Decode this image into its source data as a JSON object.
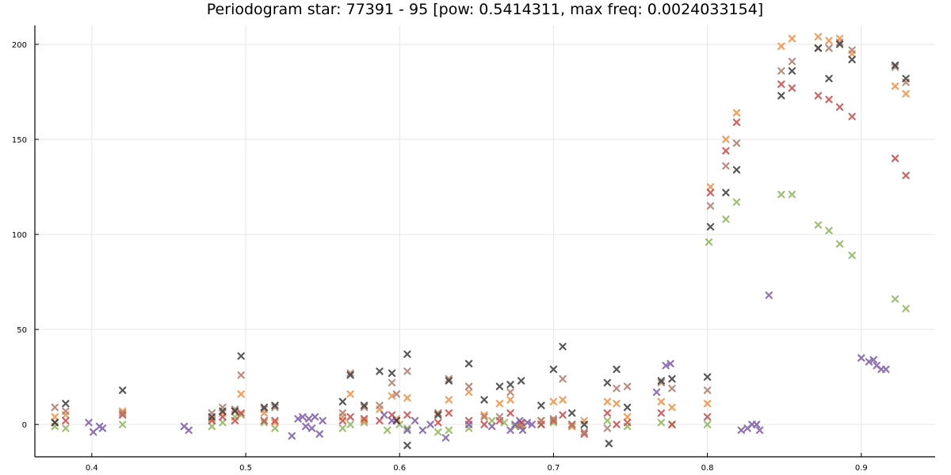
{
  "chart_data": {
    "type": "scatter",
    "title": "Periodogram star: 77391 - 95 [pow: 0.5414311, max freq: 0.0024033154]",
    "xlabel": "",
    "ylabel": "",
    "xlim": [
      0.363,
      0.948
    ],
    "ylim": [
      -17,
      210
    ],
    "xticks": [
      0.4,
      0.5,
      0.6,
      0.7,
      0.8,
      0.9
    ],
    "yticks": [
      0,
      50,
      100,
      150,
      200
    ],
    "grid": true,
    "legend": "none",
    "marker": "x",
    "series": [
      {
        "color": "#8fb55c",
        "points": [
          [
            0.376,
            -1
          ],
          [
            0.383,
            -2
          ],
          [
            0.42,
            0
          ],
          [
            0.478,
            -1
          ],
          [
            0.485,
            1
          ],
          [
            0.493,
            4
          ],
          [
            0.497,
            5
          ],
          [
            0.512,
            1
          ],
          [
            0.519,
            -2
          ],
          [
            0.563,
            -2
          ],
          [
            0.568,
            0
          ],
          [
            0.577,
            1
          ],
          [
            0.592,
            -3
          ],
          [
            0.6,
            0
          ],
          [
            0.605,
            -2
          ],
          [
            0.625,
            -4
          ],
          [
            0.632,
            -3
          ],
          [
            0.645,
            -2
          ],
          [
            0.66,
            2
          ],
          [
            0.668,
            1
          ],
          [
            0.675,
            -1
          ],
          [
            0.692,
            0
          ],
          [
            0.7,
            1
          ],
          [
            0.712,
            -1
          ],
          [
            0.735,
            2
          ],
          [
            0.748,
            -1
          ],
          [
            0.77,
            1
          ],
          [
            0.777,
            0
          ],
          [
            0.8,
            0
          ],
          [
            0.801,
            96
          ],
          [
            0.812,
            108
          ],
          [
            0.819,
            117
          ],
          [
            0.848,
            121
          ],
          [
            0.855,
            121
          ],
          [
            0.872,
            105
          ],
          [
            0.879,
            102
          ],
          [
            0.886,
            95
          ],
          [
            0.894,
            89
          ],
          [
            0.922,
            66
          ],
          [
            0.929,
            61
          ]
        ]
      },
      {
        "color": "#f08e40",
        "points": [
          [
            0.376,
            4
          ],
          [
            0.383,
            5
          ],
          [
            0.42,
            7
          ],
          [
            0.478,
            3
          ],
          [
            0.485,
            6
          ],
          [
            0.493,
            7
          ],
          [
            0.497,
            16
          ],
          [
            0.512,
            6
          ],
          [
            0.519,
            1
          ],
          [
            0.563,
            4
          ],
          [
            0.568,
            16
          ],
          [
            0.577,
            2
          ],
          [
            0.587,
            8
          ],
          [
            0.595,
            15
          ],
          [
            0.598,
            3
          ],
          [
            0.605,
            14
          ],
          [
            0.625,
            6
          ],
          [
            0.632,
            13
          ],
          [
            0.645,
            17
          ],
          [
            0.655,
            5
          ],
          [
            0.665,
            11
          ],
          [
            0.672,
            13
          ],
          [
            0.679,
            0
          ],
          [
            0.692,
            2
          ],
          [
            0.7,
            12
          ],
          [
            0.706,
            13
          ],
          [
            0.712,
            -1
          ],
          [
            0.72,
            2
          ],
          [
            0.735,
            12
          ],
          [
            0.741,
            11
          ],
          [
            0.748,
            4
          ],
          [
            0.77,
            12
          ],
          [
            0.777,
            9
          ],
          [
            0.8,
            11
          ],
          [
            0.802,
            125
          ],
          [
            0.812,
            150
          ],
          [
            0.819,
            164
          ],
          [
            0.848,
            199
          ],
          [
            0.855,
            203
          ],
          [
            0.872,
            204
          ],
          [
            0.879,
            202
          ],
          [
            0.886,
            203
          ],
          [
            0.894,
            195
          ],
          [
            0.922,
            178
          ],
          [
            0.929,
            174
          ]
        ]
      },
      {
        "color": "#c64a48",
        "points": [
          [
            0.376,
            1
          ],
          [
            0.383,
            2
          ],
          [
            0.42,
            5
          ],
          [
            0.478,
            2
          ],
          [
            0.485,
            4
          ],
          [
            0.493,
            2
          ],
          [
            0.497,
            6
          ],
          [
            0.512,
            2
          ],
          [
            0.519,
            2
          ],
          [
            0.563,
            2
          ],
          [
            0.568,
            4
          ],
          [
            0.577,
            3
          ],
          [
            0.587,
            2
          ],
          [
            0.595,
            5
          ],
          [
            0.598,
            2
          ],
          [
            0.605,
            5
          ],
          [
            0.625,
            1
          ],
          [
            0.632,
            6
          ],
          [
            0.645,
            2
          ],
          [
            0.655,
            0
          ],
          [
            0.665,
            2
          ],
          [
            0.672,
            6
          ],
          [
            0.679,
            1
          ],
          [
            0.692,
            0
          ],
          [
            0.7,
            2
          ],
          [
            0.706,
            5
          ],
          [
            0.712,
            0
          ],
          [
            0.72,
            -5
          ],
          [
            0.735,
            6
          ],
          [
            0.741,
            0
          ],
          [
            0.748,
            1
          ],
          [
            0.77,
            6
          ],
          [
            0.777,
            0
          ],
          [
            0.8,
            4
          ],
          [
            0.802,
            122
          ],
          [
            0.812,
            144
          ],
          [
            0.819,
            159
          ],
          [
            0.848,
            179
          ],
          [
            0.855,
            177
          ],
          [
            0.872,
            173
          ],
          [
            0.879,
            171
          ],
          [
            0.886,
            167
          ],
          [
            0.894,
            162
          ],
          [
            0.922,
            140
          ],
          [
            0.929,
            131
          ]
        ]
      },
      {
        "color": "#b07a6a",
        "points": [
          [
            0.376,
            9
          ],
          [
            0.383,
            7
          ],
          [
            0.42,
            6
          ],
          [
            0.478,
            6
          ],
          [
            0.485,
            9
          ],
          [
            0.493,
            8
          ],
          [
            0.497,
            26
          ],
          [
            0.512,
            8
          ],
          [
            0.519,
            9
          ],
          [
            0.563,
            6
          ],
          [
            0.568,
            27
          ],
          [
            0.577,
            9
          ],
          [
            0.587,
            10
          ],
          [
            0.595,
            22
          ],
          [
            0.598,
            16
          ],
          [
            0.605,
            28
          ],
          [
            0.625,
            6
          ],
          [
            0.632,
            24
          ],
          [
            0.645,
            20
          ],
          [
            0.655,
            4
          ],
          [
            0.665,
            4
          ],
          [
            0.672,
            17
          ],
          [
            0.679,
            -1
          ],
          [
            0.692,
            2
          ],
          [
            0.7,
            3
          ],
          [
            0.706,
            24
          ],
          [
            0.712,
            0
          ],
          [
            0.72,
            -4
          ],
          [
            0.735,
            -2
          ],
          [
            0.741,
            19
          ],
          [
            0.748,
            20
          ],
          [
            0.77,
            22
          ],
          [
            0.777,
            19
          ],
          [
            0.8,
            18
          ],
          [
            0.802,
            115
          ],
          [
            0.812,
            136
          ],
          [
            0.819,
            148
          ],
          [
            0.848,
            186
          ],
          [
            0.855,
            191
          ],
          [
            0.872,
            198
          ],
          [
            0.879,
            198
          ],
          [
            0.886,
            201
          ],
          [
            0.894,
            197
          ],
          [
            0.922,
            188
          ],
          [
            0.929,
            180
          ]
        ]
      },
      {
        "color": "#3c3c3c",
        "points": [
          [
            0.376,
            1
          ],
          [
            0.383,
            11
          ],
          [
            0.42,
            18
          ],
          [
            0.478,
            4
          ],
          [
            0.485,
            7
          ],
          [
            0.493,
            7
          ],
          [
            0.497,
            36
          ],
          [
            0.512,
            9
          ],
          [
            0.519,
            10
          ],
          [
            0.563,
            12
          ],
          [
            0.568,
            26
          ],
          [
            0.577,
            10
          ],
          [
            0.587,
            28
          ],
          [
            0.595,
            27
          ],
          [
            0.598,
            2
          ],
          [
            0.605,
            37
          ],
          [
            0.605,
            -11
          ],
          [
            0.625,
            5
          ],
          [
            0.632,
            23
          ],
          [
            0.645,
            32
          ],
          [
            0.655,
            13
          ],
          [
            0.665,
            20
          ],
          [
            0.672,
            21
          ],
          [
            0.679,
            23
          ],
          [
            0.692,
            10
          ],
          [
            0.7,
            29
          ],
          [
            0.706,
            41
          ],
          [
            0.712,
            6
          ],
          [
            0.72,
            0
          ],
          [
            0.735,
            22
          ],
          [
            0.741,
            29
          ],
          [
            0.748,
            9
          ],
          [
            0.77,
            23
          ],
          [
            0.777,
            24
          ],
          [
            0.736,
            -10
          ],
          [
            0.8,
            25
          ],
          [
            0.802,
            104
          ],
          [
            0.812,
            122
          ],
          [
            0.819,
            134
          ],
          [
            0.848,
            173
          ],
          [
            0.855,
            186
          ],
          [
            0.872,
            198
          ],
          [
            0.879,
            182
          ],
          [
            0.886,
            200
          ],
          [
            0.894,
            192
          ],
          [
            0.922,
            189
          ],
          [
            0.929,
            182
          ]
        ]
      },
      {
        "color": "#7c5aa6",
        "points": [
          [
            0.398,
            1
          ],
          [
            0.401,
            -4
          ],
          [
            0.405,
            -1
          ],
          [
            0.407,
            -2
          ],
          [
            0.46,
            -1
          ],
          [
            0.463,
            -3
          ],
          [
            0.53,
            -6
          ],
          [
            0.534,
            3
          ],
          [
            0.537,
            4
          ],
          [
            0.539,
            -1
          ],
          [
            0.541,
            3
          ],
          [
            0.543,
            -2
          ],
          [
            0.545,
            4
          ],
          [
            0.548,
            -5
          ],
          [
            0.55,
            2
          ],
          [
            0.59,
            5
          ],
          [
            0.595,
            2
          ],
          [
            0.605,
            -3
          ],
          [
            0.61,
            2
          ],
          [
            0.615,
            -3
          ],
          [
            0.62,
            0
          ],
          [
            0.63,
            -7
          ],
          [
            0.645,
            0
          ],
          [
            0.66,
            -1
          ],
          [
            0.672,
            -3
          ],
          [
            0.675,
            0
          ],
          [
            0.678,
            2
          ],
          [
            0.68,
            -3
          ],
          [
            0.683,
            1
          ],
          [
            0.686,
            0
          ],
          [
            0.767,
            17
          ],
          [
            0.773,
            31
          ],
          [
            0.776,
            32
          ],
          [
            0.84,
            68
          ],
          [
            0.822,
            -3
          ],
          [
            0.826,
            -2
          ],
          [
            0.829,
            0
          ],
          [
            0.832,
            0
          ],
          [
            0.834,
            -3
          ],
          [
            0.9,
            35
          ],
          [
            0.905,
            33
          ],
          [
            0.908,
            34
          ],
          [
            0.91,
            31
          ],
          [
            0.913,
            29
          ],
          [
            0.916,
            29
          ]
        ]
      }
    ]
  }
}
